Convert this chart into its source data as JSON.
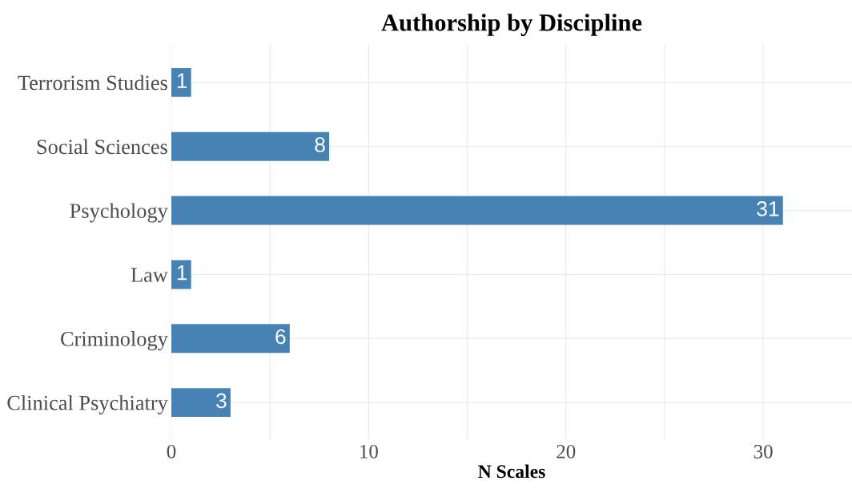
{
  "chart_data": {
    "type": "bar",
    "orientation": "horizontal",
    "title": "Authorship by Discipline",
    "xlabel": "N Scales",
    "categories": [
      "Terrorism Studies",
      "Social Sciences",
      "Psychology",
      "Law",
      "Criminology",
      "Clinical Psychiatry"
    ],
    "values": [
      1,
      8,
      31,
      1,
      6,
      3
    ],
    "color": "#4682b4",
    "xlim": [
      0,
      34.5
    ],
    "xticks": [
      0,
      {
        "value": 5,
        "label": null
      },
      10,
      {
        "value": 15,
        "label": null
      },
      20,
      {
        "value": 25,
        "label": null
      },
      30
    ],
    "grid": true,
    "data_labels": true
  }
}
